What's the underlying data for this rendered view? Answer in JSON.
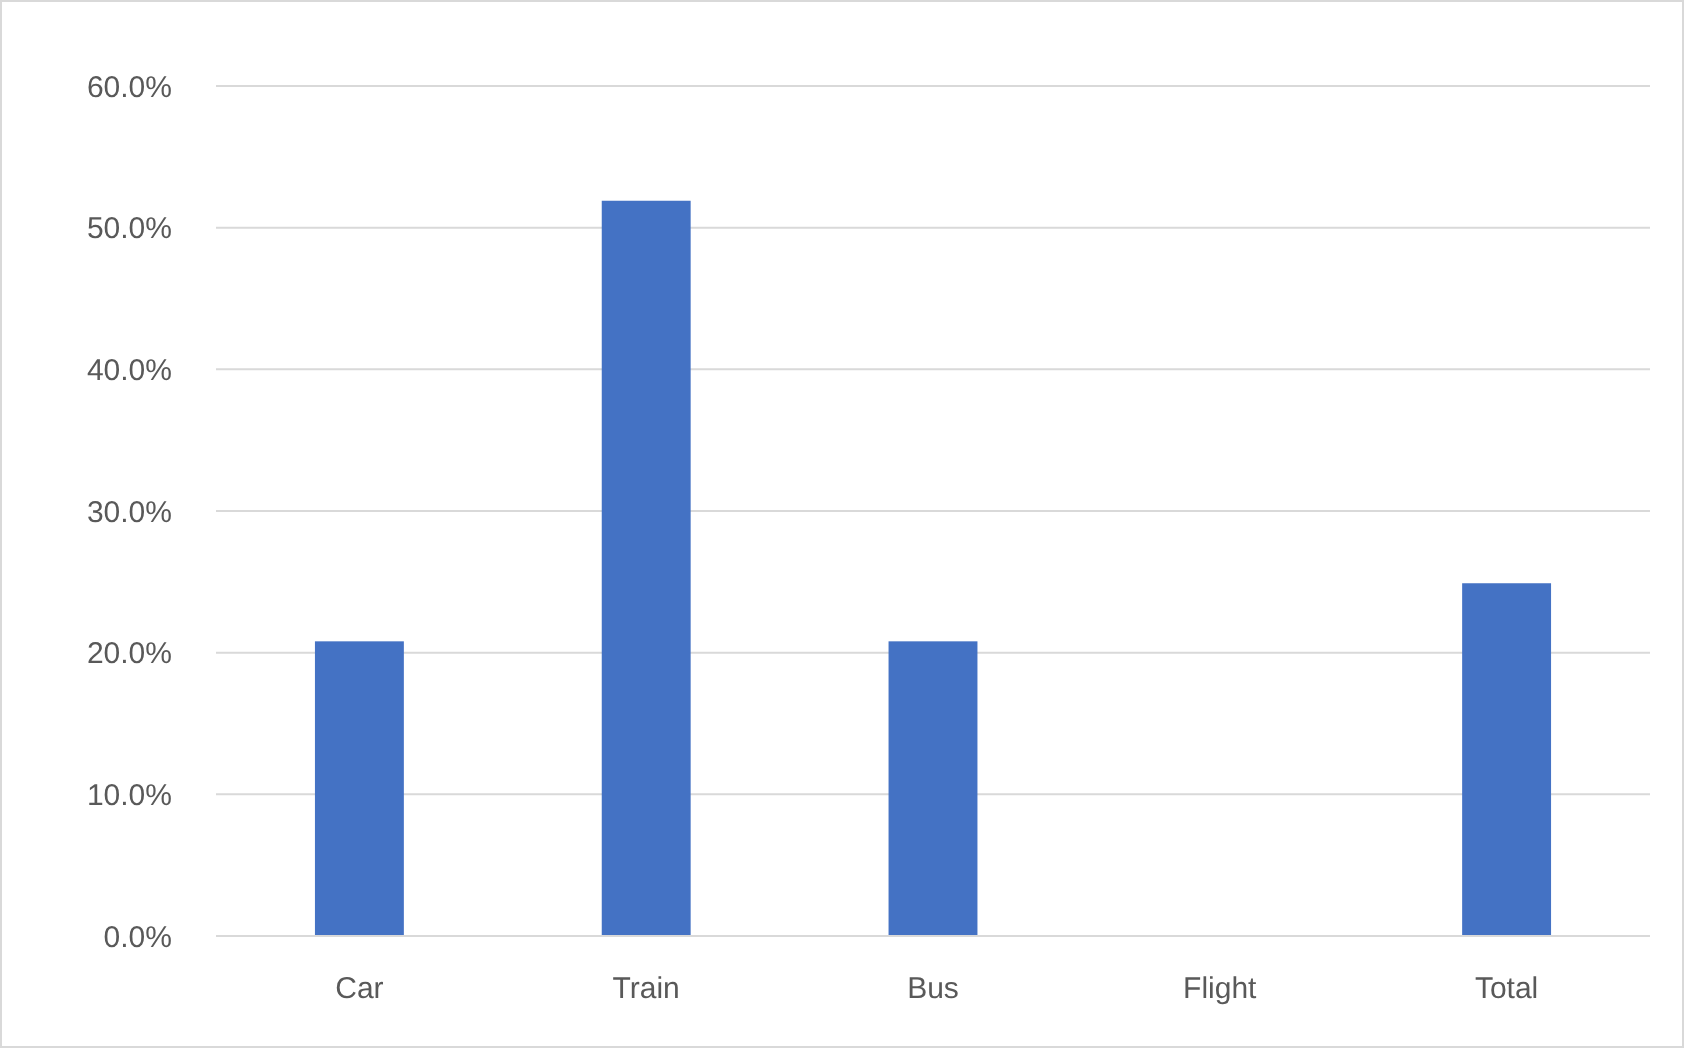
{
  "chart_data": {
    "type": "bar",
    "categories": [
      "Car",
      "Train",
      "Bus",
      "Flight",
      "Total"
    ],
    "values": [
      20.8,
      51.9,
      20.8,
      0,
      24.9
    ],
    "color": "#4472c4",
    "ylim": [
      0,
      60
    ],
    "yticks": [
      {
        "value": 0,
        "label": "0.0%"
      },
      {
        "value": 10,
        "label": "10.0%"
      },
      {
        "value": 20,
        "label": "20.0%"
      },
      {
        "value": 30,
        "label": "30.0%"
      },
      {
        "value": 40,
        "label": "40.0%"
      },
      {
        "value": 50,
        "label": "50.0%"
      },
      {
        "value": 60,
        "label": "60.0%"
      }
    ],
    "grid": "y"
  }
}
